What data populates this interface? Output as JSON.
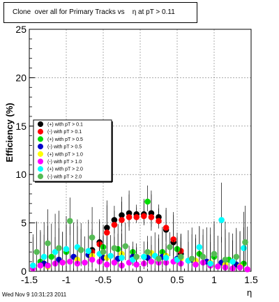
{
  "title": "Clone  over all for Primary Tracks vs    η at pT > 0.11",
  "footer": "Wed Nov  9 10:31:23 2011",
  "chart_data": {
    "type": "scatter",
    "xlabel": "η",
    "ylabel": "Efficiency (%)",
    "xlim": [
      -1.5,
      1.5
    ],
    "ylim": [
      0,
      25
    ],
    "xticks": [
      "-1.5",
      "-1",
      "-0.5",
      "0",
      "0.5",
      "1",
      "1.5"
    ],
    "yticks": [
      "0",
      "5",
      "10",
      "15",
      "20",
      "25"
    ],
    "grid": true,
    "legend_position": "middle-left",
    "series": [
      {
        "name": "(+) with pT > 0.1",
        "color": "#000000",
        "x": [
          -0.65,
          -0.55,
          -0.45,
          -0.35,
          -0.25,
          -0.15,
          -0.05,
          0.05,
          0.15,
          0.25,
          0.35,
          0.45,
          0.55
        ],
        "y": [
          2.2,
          3.0,
          4.5,
          5.3,
          5.8,
          6.0,
          5.9,
          5.9,
          6.0,
          5.6,
          4.3,
          3.0,
          1.8
        ]
      },
      {
        "name": "(-) with pT > 0.1",
        "color": "#ff0000",
        "x": [
          -0.65,
          -0.55,
          -0.45,
          -0.35,
          -0.25,
          -0.15,
          -0.05,
          0.05,
          0.15,
          0.25,
          0.35,
          0.45,
          0.55
        ],
        "y": [
          2.0,
          2.8,
          4.0,
          4.8,
          5.3,
          5.6,
          5.6,
          5.7,
          5.6,
          5.2,
          4.5,
          3.3,
          2.1
        ]
      },
      {
        "name": "(+) with pT > 0.5",
        "color": "#00dd00",
        "x": [
          -1.35,
          -1.2,
          -1.0,
          -0.8,
          -0.5,
          -0.3,
          -0.1,
          0.1,
          0.3,
          0.5,
          0.8,
          1.0,
          1.2,
          1.4
        ],
        "y": [
          1.0,
          1.5,
          2.0,
          2.2,
          2.5,
          2.3,
          2.0,
          7.2,
          2.0,
          2.3,
          1.8,
          1.5,
          1.2,
          0.8
        ]
      },
      {
        "name": "(-) with pT > 0.5",
        "color": "#0000cc",
        "x": [
          -1.3,
          -1.1,
          -0.9,
          -0.7,
          -0.5,
          -0.3,
          -0.1,
          0.1,
          0.3,
          0.5,
          0.7,
          0.9,
          1.1,
          1.3
        ],
        "y": [
          0.8,
          1.2,
          1.5,
          1.7,
          1.4,
          1.3,
          1.5,
          1.4,
          1.5,
          1.3,
          1.2,
          1.0,
          0.9,
          0.7
        ]
      },
      {
        "name": "(+) with pT > 1.0",
        "color": "#ffff00",
        "x": [
          -1.25,
          -1.05,
          -0.85,
          -0.65,
          -0.45,
          -0.25,
          -0.05,
          0.15,
          0.35,
          0.55,
          0.75,
          0.95,
          1.15,
          1.35
        ],
        "y": [
          0.5,
          0.9,
          1.2,
          1.6,
          1.4,
          1.8,
          1.5,
          1.9,
          1.6,
          1.3,
          1.1,
          0.9,
          0.7,
          0.5
        ]
      },
      {
        "name": "(-) with pT > 1.0",
        "color": "#ff00ff",
        "x": [
          -1.45,
          -1.35,
          -1.25,
          -1.15,
          -1.05,
          -0.95,
          -0.85,
          -0.75,
          -0.65,
          -0.55,
          -0.45,
          -0.35,
          -0.25,
          -0.15,
          -0.05,
          0.05,
          0.15,
          0.25,
          0.35,
          0.45,
          0.55,
          0.65,
          0.75,
          0.85,
          0.95,
          1.05,
          1.15,
          1.25,
          1.35,
          1.45
        ],
        "y": [
          0.3,
          0.6,
          0.6,
          0.8,
          0.9,
          1.0,
          0.8,
          0.9,
          1.2,
          1.0,
          0.7,
          0.9,
          0.6,
          0.9,
          0.7,
          0.8,
          1.0,
          0.9,
          0.9,
          1.0,
          0.8,
          1.1,
          0.7,
          0.9,
          0.6,
          0.5,
          0.4,
          0.3,
          0.4,
          0.2
        ]
      },
      {
        "name": "(+) with pT > 2.0",
        "color": "#00ffff",
        "x": [
          -1.45,
          -1.3,
          -1.15,
          -1.0,
          -0.85,
          -0.7,
          -0.55,
          -0.4,
          -0.25,
          -0.1,
          0.05,
          0.2,
          0.35,
          0.5,
          0.65,
          0.8,
          0.95,
          1.1,
          1.25,
          1.4
        ],
        "y": [
          0.6,
          1.5,
          2.0,
          2.3,
          2.5,
          2.1,
          1.8,
          1.6,
          1.4,
          1.2,
          1.5,
          1.6,
          1.4,
          1.2,
          1.1,
          2.5,
          0.8,
          5.3,
          1.0,
          2.4
        ]
      },
      {
        "name": "(-) with pT > 2.0",
        "color": "#55bb55",
        "x": [
          -1.4,
          -1.25,
          -1.1,
          -0.95,
          -0.8,
          -0.65,
          -0.5,
          -0.35,
          -0.2,
          -0.05,
          0.1,
          0.25,
          0.4,
          0.55,
          0.7,
          0.85,
          1.0,
          1.15,
          1.3,
          1.42
        ],
        "y": [
          2.0,
          2.9,
          2.4,
          5.2,
          2.2,
          3.5,
          2.0,
          2.4,
          2.6,
          1.5,
          2.0,
          1.3,
          2.5,
          1.5,
          1.3,
          1.5,
          1.8,
          1.2,
          1.5,
          3.0
        ]
      }
    ]
  }
}
